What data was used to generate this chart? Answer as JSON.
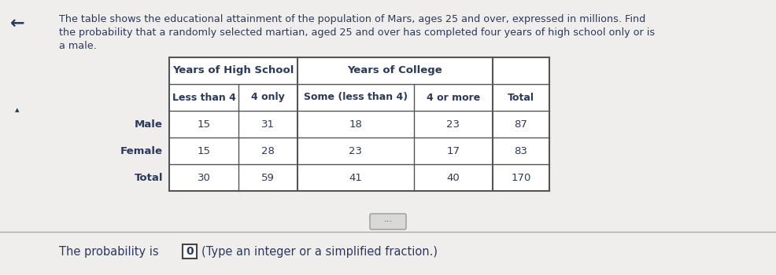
{
  "title_line1": "The table shows the educational attainment of the population of Mars, ages 25 and over, expressed in millions. Find",
  "title_line2": "the probability that a randomly selected martian, aged 25 and over has completed four years of high school only or is",
  "title_line3": "a male.",
  "col_header1": "Years of High School",
  "col_header2": "Years of College",
  "sub_headers": [
    "Less than 4",
    "4 only",
    "Some (less than 4)",
    "4 or more",
    "Total"
  ],
  "row_labels": [
    "Male",
    "Female",
    "Total"
  ],
  "data": [
    [
      15,
      31,
      18,
      23,
      87
    ],
    [
      15,
      28,
      23,
      17,
      83
    ],
    [
      30,
      59,
      41,
      40,
      170
    ]
  ],
  "answer_text": "The probability is",
  "answer_value": "0",
  "answer_suffix": "(Type an integer or a simplified fraction.)",
  "bg_color": "#f0eeec",
  "table_bg": "#ffffff",
  "text_color": "#2a3a5c",
  "divider_color": "#aaaaaa",
  "arrow_symbol": "←",
  "triangle_symbol": "▴"
}
